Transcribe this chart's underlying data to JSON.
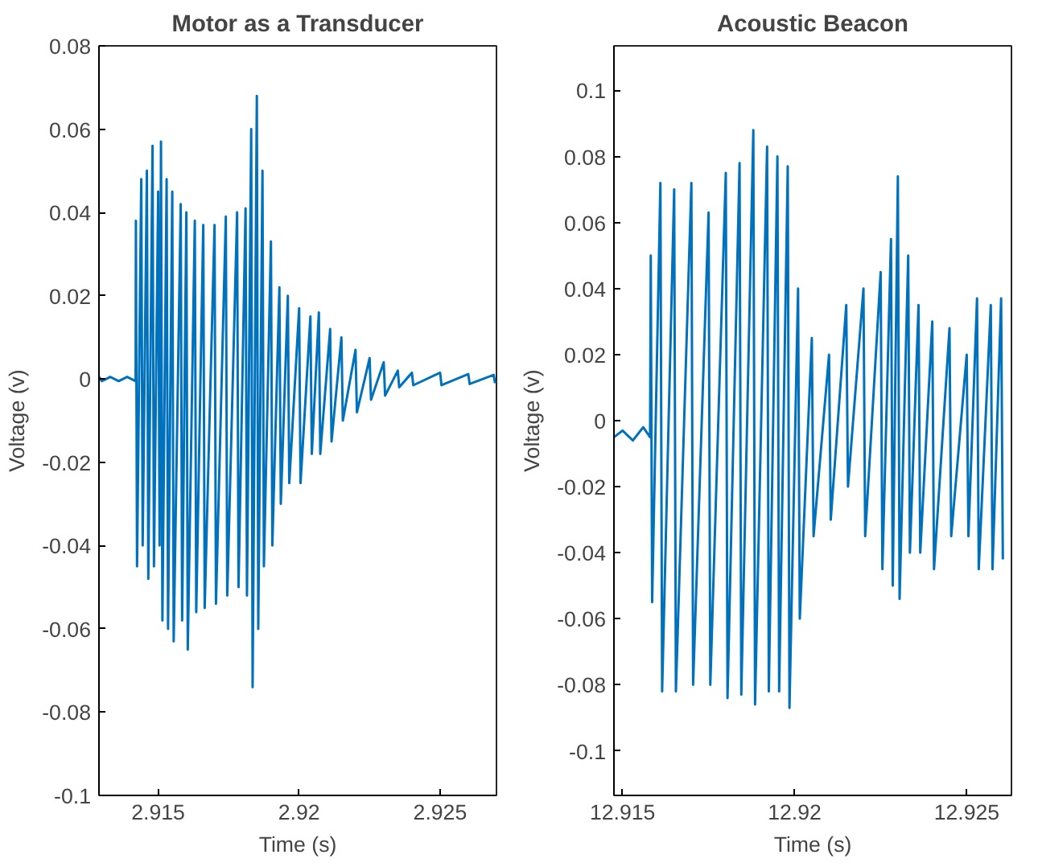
{
  "chart_data": [
    {
      "type": "line",
      "title": "Motor as a Transducer",
      "xlabel": "Time (s)",
      "ylabel": "Voltage (v)",
      "xlim": [
        2.9129,
        2.927
      ],
      "ylim": [
        -0.1,
        0.08
      ],
      "xticks": [
        2.915,
        2.92,
        2.925
      ],
      "yticks": [
        -0.1,
        -0.08,
        -0.06,
        -0.04,
        -0.02,
        0,
        0.02,
        0.04,
        0.06,
        0.08
      ],
      "grid": false,
      "line_style": "solid",
      "series": [
        {
          "color": "#0072bd",
          "x": [
            2.9129,
            2.913,
            2.9133,
            2.9136,
            2.9139,
            2.9142,
            2.91421,
            2.91425,
            2.9144,
            2.91445,
            2.9146,
            2.91465,
            2.9148,
            2.91485,
            2.915,
            2.91505,
            2.9151,
            2.91515,
            2.9153,
            2.91535,
            2.9155,
            2.91555,
            2.9158,
            2.91585,
            2.916,
            2.91605,
            2.9163,
            2.91635,
            2.9166,
            2.91665,
            2.917,
            2.91705,
            2.9174,
            2.91745,
            2.9178,
            2.91785,
            2.9181,
            2.91815,
            2.9183,
            2.91835,
            2.9185,
            2.91855,
            2.9187,
            2.91875,
            2.919,
            2.91905,
            2.9193,
            2.91935,
            2.9196,
            2.91965,
            2.92,
            2.92005,
            2.9204,
            2.92045,
            2.9207,
            2.92075,
            2.9211,
            2.92115,
            2.9215,
            2.92155,
            2.922,
            2.92205,
            2.9225,
            2.92255,
            2.923,
            2.92305,
            2.9235,
            2.92355,
            2.924,
            2.92405,
            2.925,
            2.92505,
            2.926,
            2.92605,
            2.9269,
            2.92695
          ],
          "values": [
            0.0005,
            -0.0005,
            0.0005,
            -0.0005,
            0.0005,
            -0.0005,
            0.038,
            -0.045,
            0.048,
            -0.04,
            0.05,
            -0.048,
            0.056,
            -0.045,
            0.045,
            -0.04,
            0.057,
            -0.058,
            0.048,
            -0.06,
            0.045,
            -0.063,
            0.042,
            -0.058,
            0.04,
            -0.065,
            0.038,
            -0.056,
            0.037,
            -0.055,
            0.037,
            -0.054,
            0.039,
            -0.052,
            0.04,
            -0.05,
            0.041,
            -0.052,
            0.06,
            -0.074,
            0.068,
            -0.06,
            0.05,
            -0.045,
            0.033,
            -0.04,
            0.022,
            -0.03,
            0.02,
            -0.025,
            0.017,
            -0.025,
            0.015,
            -0.018,
            0.016,
            -0.018,
            0.012,
            -0.015,
            0.01,
            -0.01,
            0.007,
            -0.008,
            0.005,
            -0.005,
            0.004,
            -0.004,
            0.002,
            -0.002,
            0.0015,
            -0.0015,
            0.0015,
            -0.0015,
            0.0012,
            -0.0012,
            0.001,
            -0.001
          ]
        }
      ]
    },
    {
      "type": "line",
      "title": "Acoustic Beacon",
      "xlabel": "Time (s)",
      "ylabel": "Voltage (v)",
      "xlim": [
        12.91475,
        12.9263
      ],
      "ylim": [
        -0.1135,
        0.1135
      ],
      "xticks": [
        12.915,
        12.92,
        12.925
      ],
      "yticks": [
        -0.1,
        -0.08,
        -0.06,
        -0.04,
        -0.02,
        0,
        0.02,
        0.04,
        0.06,
        0.08,
        0.1
      ],
      "grid": false,
      "line_style": "solid",
      "series": [
        {
          "color": "#0072bd",
          "x": [
            12.91475,
            12.915,
            12.9153,
            12.9156,
            12.9158,
            12.91582,
            12.91586,
            12.9161,
            12.91615,
            12.9165,
            12.91655,
            12.917,
            12.91705,
            12.9175,
            12.91755,
            12.918,
            12.91805,
            12.9184,
            12.91845,
            12.9188,
            12.91885,
            12.9192,
            12.91925,
            12.9195,
            12.91955,
            12.9198,
            12.91985,
            12.9201,
            12.92015,
            12.9205,
            12.92055,
            12.921,
            12.92105,
            12.9215,
            12.92155,
            12.922,
            12.92205,
            12.9225,
            12.92255,
            12.9228,
            12.92285,
            12.923,
            12.92305,
            12.9233,
            12.92335,
            12.9236,
            12.92365,
            12.924,
            12.92405,
            12.9245,
            12.92455,
            12.925,
            12.92505,
            12.9253,
            12.92535,
            12.9257,
            12.92575,
            12.926,
            12.92605
          ],
          "values": [
            -0.005,
            -0.003,
            -0.006,
            -0.002,
            -0.005,
            0.05,
            -0.055,
            0.072,
            -0.082,
            0.07,
            -0.082,
            0.072,
            -0.08,
            0.063,
            -0.08,
            0.075,
            -0.084,
            0.078,
            -0.083,
            0.088,
            -0.086,
            0.083,
            -0.082,
            0.08,
            -0.082,
            0.077,
            -0.087,
            0.04,
            -0.06,
            0.025,
            -0.035,
            0.02,
            -0.03,
            0.035,
            -0.02,
            0.04,
            -0.035,
            0.045,
            -0.045,
            0.055,
            -0.05,
            0.074,
            -0.054,
            0.05,
            -0.04,
            0.035,
            -0.04,
            0.03,
            -0.045,
            0.028,
            -0.035,
            0.02,
            -0.035,
            0.037,
            -0.045,
            0.035,
            -0.045,
            0.037,
            -0.042
          ]
        }
      ]
    }
  ]
}
